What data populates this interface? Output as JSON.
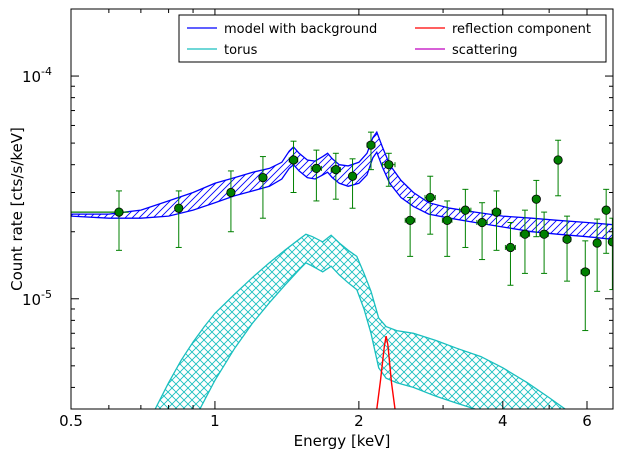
{
  "chart_data": {
    "type": "line",
    "xlabel": "Energy [keV]",
    "ylabel": "Count rate [cts/s/keV]",
    "x_scale": "log",
    "y_scale": "log",
    "xlim": [
      0.5,
      6.8
    ],
    "ylim": [
      3.2e-06,
      0.0002
    ],
    "x_ticks": [
      {
        "value": 0.5,
        "label": "0.5"
      },
      {
        "value": 1,
        "label": "1"
      },
      {
        "value": 2,
        "label": "2"
      },
      {
        "value": 4,
        "label": "4"
      },
      {
        "value": 6,
        "label": "6"
      }
    ],
    "y_ticks": [
      {
        "value": 1e-05,
        "label_base": "10",
        "label_exp": "-5"
      },
      {
        "value": 0.0001,
        "label_base": "10",
        "label_exp": "-4"
      }
    ],
    "legend": {
      "placement": "top-right",
      "entries": [
        {
          "label": "model with background",
          "color": "#0000ff"
        },
        {
          "label": "reflection component",
          "color": "#ff0000"
        },
        {
          "label": "torus",
          "color": "#19bfbf"
        },
        {
          "label": "scattering",
          "color": "#bf00bf"
        }
      ]
    },
    "series": [
      {
        "name": "model with background",
        "color": "#0000ff",
        "upper": [
          [
            0.5,
            2.4e-05
          ],
          [
            0.6,
            2.4e-05
          ],
          [
            0.7,
            2.5e-05
          ],
          [
            0.8,
            2.75e-05
          ],
          [
            0.9,
            3e-05
          ],
          [
            1.0,
            3.3e-05
          ],
          [
            1.1,
            3.5e-05
          ],
          [
            1.2,
            3.7e-05
          ],
          [
            1.3,
            3.85e-05
          ],
          [
            1.38,
            4.1e-05
          ],
          [
            1.43,
            4.6e-05
          ],
          [
            1.46,
            4.8e-05
          ],
          [
            1.5,
            4.5e-05
          ],
          [
            1.56,
            4.2e-05
          ],
          [
            1.62,
            4.15e-05
          ],
          [
            1.68,
            4.35e-05
          ],
          [
            1.72,
            4.5e-05
          ],
          [
            1.76,
            4.25e-05
          ],
          [
            1.82,
            4e-05
          ],
          [
            1.9,
            3.95e-05
          ],
          [
            2.0,
            4.1e-05
          ],
          [
            2.08,
            4.5e-05
          ],
          [
            2.14,
            5.3e-05
          ],
          [
            2.18,
            5.6e-05
          ],
          [
            2.24,
            4.8e-05
          ],
          [
            2.32,
            4e-05
          ],
          [
            2.45,
            3.4e-05
          ],
          [
            2.6,
            3e-05
          ],
          [
            2.8,
            2.7e-05
          ],
          [
            3.1,
            2.55e-05
          ],
          [
            3.5,
            2.45e-05
          ],
          [
            4.0,
            2.35e-05
          ],
          [
            4.6,
            2.3e-05
          ],
          [
            5.2,
            2.25e-05
          ],
          [
            6.0,
            2.2e-05
          ],
          [
            6.8,
            2.15e-05
          ]
        ],
        "lower": [
          [
            0.5,
            2.35e-05
          ],
          [
            0.6,
            2.3e-05
          ],
          [
            0.7,
            2.3e-05
          ],
          [
            0.8,
            2.35e-05
          ],
          [
            0.9,
            2.5e-05
          ],
          [
            1.0,
            2.7e-05
          ],
          [
            1.1,
            2.9e-05
          ],
          [
            1.2,
            3.05e-05
          ],
          [
            1.3,
            3.2e-05
          ],
          [
            1.38,
            3.45e-05
          ],
          [
            1.43,
            3.85e-05
          ],
          [
            1.46,
            4e-05
          ],
          [
            1.5,
            3.75e-05
          ],
          [
            1.56,
            3.5e-05
          ],
          [
            1.62,
            3.45e-05
          ],
          [
            1.68,
            3.6e-05
          ],
          [
            1.72,
            3.7e-05
          ],
          [
            1.76,
            3.5e-05
          ],
          [
            1.82,
            3.3e-05
          ],
          [
            1.9,
            3.2e-05
          ],
          [
            2.0,
            3.3e-05
          ],
          [
            2.08,
            3.6e-05
          ],
          [
            2.14,
            4.3e-05
          ],
          [
            2.18,
            4.55e-05
          ],
          [
            2.24,
            3.9e-05
          ],
          [
            2.32,
            3.3e-05
          ],
          [
            2.45,
            2.85e-05
          ],
          [
            2.6,
            2.6e-05
          ],
          [
            2.8,
            2.4e-05
          ],
          [
            3.1,
            2.3e-05
          ],
          [
            3.5,
            2.2e-05
          ],
          [
            4.0,
            2.1e-05
          ],
          [
            4.6,
            2e-05
          ],
          [
            5.2,
            1.95e-05
          ],
          [
            6.0,
            1.9e-05
          ],
          [
            6.8,
            1.85e-05
          ]
        ]
      },
      {
        "name": "torus",
        "color": "#19bfbf",
        "upper": [
          [
            0.75,
            3.2e-06
          ],
          [
            0.8,
            4.2e-06
          ],
          [
            0.85,
            5.3e-06
          ],
          [
            0.9,
            6.4e-06
          ],
          [
            0.95,
            7.5e-06
          ],
          [
            1.0,
            8.6e-06
          ],
          [
            1.1,
            1.05e-05
          ],
          [
            1.2,
            1.25e-05
          ],
          [
            1.3,
            1.45e-05
          ],
          [
            1.4,
            1.65e-05
          ],
          [
            1.5,
            1.85e-05
          ],
          [
            1.55,
            1.95e-05
          ],
          [
            1.6,
            1.9e-05
          ],
          [
            1.68,
            1.8e-05
          ],
          [
            1.75,
            1.93e-05
          ],
          [
            1.82,
            1.78e-05
          ],
          [
            1.9,
            1.65e-05
          ],
          [
            1.98,
            1.55e-05
          ],
          [
            2.05,
            1.3e-05
          ],
          [
            2.12,
            1.08e-05
          ],
          [
            2.2,
            8.2e-06
          ],
          [
            2.28,
            7.5e-06
          ],
          [
            2.4,
            7.2e-06
          ],
          [
            2.6,
            7e-06
          ],
          [
            2.9,
            6.5e-06
          ],
          [
            3.2,
            6e-06
          ],
          [
            3.6,
            5.5e-06
          ],
          [
            4.0,
            4.9e-06
          ],
          [
            4.5,
            4.2e-06
          ],
          [
            5.0,
            3.6e-06
          ],
          [
            5.4,
            3.2e-06
          ]
        ],
        "lower": [
          [
            0.93,
            3.2e-06
          ],
          [
            1.0,
            4.3e-06
          ],
          [
            1.1,
            6e-06
          ],
          [
            1.2,
            7.8e-06
          ],
          [
            1.3,
            9.6e-06
          ],
          [
            1.4,
            1.15e-05
          ],
          [
            1.5,
            1.35e-05
          ],
          [
            1.55,
            1.45e-05
          ],
          [
            1.6,
            1.4e-05
          ],
          [
            1.68,
            1.32e-05
          ],
          [
            1.75,
            1.4e-05
          ],
          [
            1.82,
            1.28e-05
          ],
          [
            1.9,
            1.18e-05
          ],
          [
            1.98,
            1.1e-05
          ],
          [
            2.05,
            9e-06
          ],
          [
            2.12,
            7e-06
          ],
          [
            2.2,
            4.9e-06
          ],
          [
            2.28,
            4.4e-06
          ],
          [
            2.4,
            4.2e-06
          ],
          [
            2.6,
            4e-06
          ],
          [
            2.9,
            3.65e-06
          ],
          [
            3.2,
            3.4e-06
          ],
          [
            3.5,
            3.2e-06
          ]
        ]
      },
      {
        "name": "reflection component",
        "color": "#ff0000",
        "line": [
          [
            2.18,
            3.2e-06
          ],
          [
            2.22,
            4.3e-06
          ],
          [
            2.26,
            6.1e-06
          ],
          [
            2.28,
            6.8e-06
          ],
          [
            2.3,
            6.2e-06
          ],
          [
            2.34,
            4.2e-06
          ],
          [
            2.38,
            3.2e-06
          ]
        ]
      }
    ],
    "data_points": {
      "name": "data",
      "color": "#008000",
      "points": [
        {
          "x": 0.63,
          "y": 2.45e-05,
          "yerr_low": 8e-06,
          "yerr_high": 6e-06,
          "xerr": 0
        },
        {
          "x": 0.84,
          "y": 2.55e-05,
          "yerr_low": 8.5e-06,
          "yerr_high": 5e-06,
          "xerr": 0
        },
        {
          "x": 1.08,
          "y": 3e-05,
          "yerr_low": 1e-05,
          "yerr_high": 7.5e-06,
          "xerr": 0
        },
        {
          "x": 1.26,
          "y": 3.5e-05,
          "yerr_low": 1.2e-05,
          "yerr_high": 8.5e-06,
          "xerr": 0.02
        },
        {
          "x": 1.46,
          "y": 4.2e-05,
          "yerr_low": 1.2e-05,
          "yerr_high": 9e-06,
          "xerr": 0.03
        },
        {
          "x": 1.63,
          "y": 3.85e-05,
          "yerr_low": 1.1e-05,
          "yerr_high": 8e-06,
          "xerr": 0.04
        },
        {
          "x": 1.79,
          "y": 3.8e-05,
          "yerr_low": 1e-05,
          "yerr_high": 7e-06,
          "xerr": 0.04
        },
        {
          "x": 1.94,
          "y": 3.55e-05,
          "yerr_low": 1e-05,
          "yerr_high": 7e-06,
          "xerr": 0.03
        },
        {
          "x": 2.12,
          "y": 4.9e-05,
          "yerr_low": 1.1e-05,
          "yerr_high": 7e-06,
          "xerr": 0.04
        },
        {
          "x": 2.31,
          "y": 4e-05,
          "yerr_low": 8e-06,
          "yerr_high": 5e-06,
          "xerr": 0.07
        },
        {
          "x": 2.56,
          "y": 2.25e-05,
          "yerr_low": 7e-06,
          "yerr_high": 6e-06,
          "xerr": 0.06
        },
        {
          "x": 2.82,
          "y": 2.85e-05,
          "yerr_low": 9e-06,
          "yerr_high": 7e-06,
          "xerr": 0.07
        },
        {
          "x": 3.06,
          "y": 2.25e-05,
          "yerr_low": 7e-06,
          "yerr_high": 5e-06,
          "xerr": 0.07
        },
        {
          "x": 3.34,
          "y": 2.5e-05,
          "yerr_low": 8e-06,
          "yerr_high": 6e-06,
          "xerr": 0.09
        },
        {
          "x": 3.62,
          "y": 2.2e-05,
          "yerr_low": 7e-06,
          "yerr_high": 5e-06,
          "xerr": 0.09
        },
        {
          "x": 3.88,
          "y": 2.45e-05,
          "yerr_low": 8e-06,
          "yerr_high": 6e-06,
          "xerr": 0.08
        },
        {
          "x": 4.15,
          "y": 1.7e-05,
          "yerr_low": 5.5e-06,
          "yerr_high": 5e-06,
          "xerr": 0.1
        },
        {
          "x": 4.45,
          "y": 1.95e-05,
          "yerr_low": 6.5e-06,
          "yerr_high": 5.5e-06,
          "xerr": 0.1
        },
        {
          "x": 4.7,
          "y": 2.8e-05,
          "yerr_low": 9e-06,
          "yerr_high": 6e-06,
          "xerr": 0
        },
        {
          "x": 4.88,
          "y": 1.95e-05,
          "yerr_low": 6.5e-06,
          "yerr_high": 5e-06,
          "xerr": 0.1
        },
        {
          "x": 5.22,
          "y": 4.2e-05,
          "yerr_low": 1.3e-05,
          "yerr_high": 9.5e-06,
          "xerr": 0
        },
        {
          "x": 5.45,
          "y": 1.85e-05,
          "yerr_low": 6.5e-06,
          "yerr_high": 5e-06,
          "xerr": 0.1
        },
        {
          "x": 5.95,
          "y": 1.32e-05,
          "yerr_low": 6e-06,
          "yerr_high": 5e-06,
          "xerr": 0.12
        },
        {
          "x": 6.3,
          "y": 1.78e-05,
          "yerr_low": 7e-06,
          "yerr_high": 5e-06,
          "xerr": 0.1
        },
        {
          "x": 6.58,
          "y": 2.5e-05,
          "yerr_low": 9e-06,
          "yerr_high": 6e-06,
          "xerr": 0.1
        },
        {
          "x": 6.78,
          "y": 1.8e-05,
          "yerr_low": 7e-06,
          "yerr_high": 5e-06,
          "xerr": 0.06
        }
      ]
    },
    "background_line": {
      "color": "#008000",
      "from_x": 0.5,
      "to_x": 0.66,
      "y": 2.45e-05
    }
  }
}
